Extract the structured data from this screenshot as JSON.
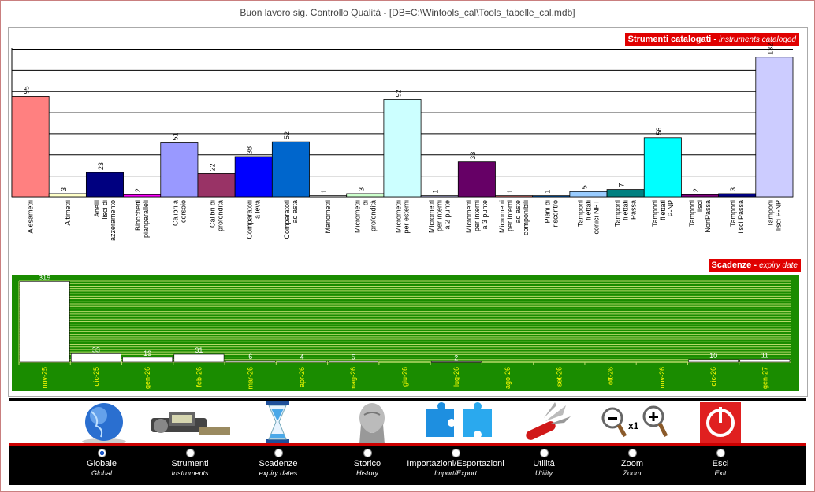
{
  "window": {
    "title": "Buon lavoro sig. Controllo Qualità - [DB=C:\\Wintools_cal\\Tools_tabelle_cal.mdb]"
  },
  "instruments_panel": {
    "label_main": "Strumenti catalogati",
    "label_sub": "instruments cataloged"
  },
  "expiry_panel": {
    "label_main": "Scadenze",
    "label_sub": "expiry date"
  },
  "chart_data": [
    {
      "type": "bar",
      "title": "Strumenti catalogati - instruments cataloged",
      "ylim": [
        0,
        140
      ],
      "grid": true,
      "categories": [
        "Alesametri",
        "Altimetri",
        "Anelli lisci di azzeramento",
        "Blocchetti pianparalleli",
        "Calibri a corsoio",
        "Calibri di profondità",
        "Comparatori a leva",
        "Comparatori ad asta",
        "Manometri",
        "Micrometri di profondità",
        "Micrometri per esterni",
        "Micrometri per interni a 2 punte",
        "Micrometri per interni a 3 punte",
        "Micrometri per interni ad aste componibili",
        "Piani di riscontro",
        "Tamponi filettati conici NPT",
        "Tamponi filettati Passa",
        "Tamponi filettati P-NP",
        "Tamponi lisci NonPassa",
        "Tamponi lisci Passa",
        "Tamponi lisci P-NP"
      ],
      "values": [
        95,
        3,
        23,
        2,
        51,
        22,
        38,
        52,
        1,
        3,
        92,
        1,
        33,
        1,
        1,
        5,
        7,
        56,
        2,
        3,
        132
      ],
      "colors": [
        "#ff8080",
        "#ffffc8",
        "#000080",
        "#ff00ff",
        "#9999ff",
        "#993366",
        "#0000ff",
        "#0066cc",
        "#ffffff",
        "#ccffcc",
        "#ccffff",
        "#ccccff",
        "#660066",
        "#ff8080",
        "#0066cc",
        "#99ccff",
        "#008080",
        "#00ffff",
        "#800080",
        "#000080",
        "#ccccff"
      ]
    },
    {
      "type": "bar",
      "title": "Scadenze - expiry date",
      "ylim": [
        0,
        320
      ],
      "grid": true,
      "categories": [
        "nov-25",
        "dic-25",
        "gen-26",
        "feb-26",
        "mar-26",
        "apr-26",
        "mag-26",
        "giu-26",
        "lug-26",
        "ago-26",
        "set-26",
        "ott-26",
        "nov-26",
        "dic-26",
        "gen-27"
      ],
      "values": [
        319,
        33,
        19,
        31,
        6,
        4,
        5,
        0,
        2,
        0,
        0,
        0,
        0,
        10,
        11
      ]
    }
  ],
  "nav": {
    "items": [
      {
        "label": "Globale",
        "sub": "Global",
        "selected": true,
        "icon": "globe-icon"
      },
      {
        "label": "Strumenti",
        "sub": "Instruments",
        "selected": false,
        "icon": "caliper-icon"
      },
      {
        "label": "Scadenze",
        "sub": "expiry dates",
        "selected": false,
        "icon": "hourglass-icon"
      },
      {
        "label": "Storico",
        "sub": "History",
        "selected": false,
        "icon": "statue-icon"
      },
      {
        "label": "Importazioni/Esportazioni",
        "sub": "Import/Export",
        "selected": false,
        "icon": "puzzle-icon"
      },
      {
        "label": "Utilità",
        "sub": "Utility",
        "selected": false,
        "icon": "swiss-knife-icon"
      },
      {
        "label": "Zoom",
        "sub": "Zoom",
        "selected": false,
        "icon": "zoom-icon"
      },
      {
        "label": "Esci",
        "sub": "Exit",
        "selected": false,
        "icon": "power-icon"
      }
    ],
    "zoom_level": "x1"
  }
}
